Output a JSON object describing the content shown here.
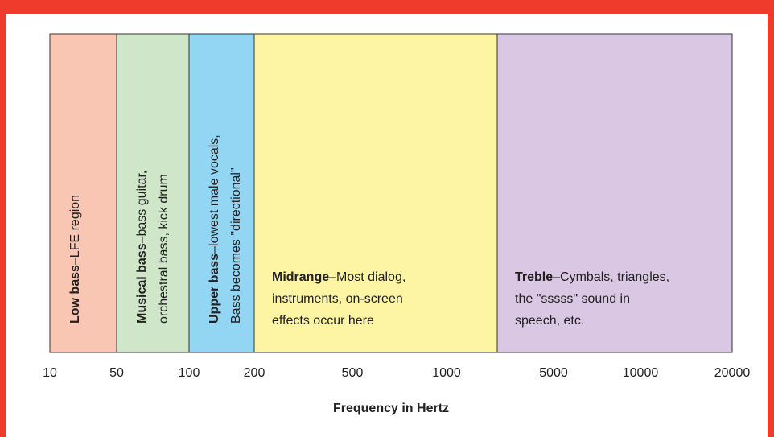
{
  "bands": [
    {
      "title": "Low bass",
      "lines": [
        "–LFE region"
      ],
      "color": "#f8c6b2"
    },
    {
      "title": "Musical bass",
      "lines": [
        "–bass guitar,",
        "orchestral bass, kick drum"
      ],
      "color": "#d0e6c8"
    },
    {
      "title": "Upper bass",
      "lines": [
        "–lowest male vocals,",
        "Bass becomes \"directional\""
      ],
      "color": "#92d6f4"
    },
    {
      "title": "Midrange",
      "lines": [
        "–Most dialog,",
        "instruments, on-screen",
        "effects occur here"
      ],
      "color": "#fdf5a3"
    },
    {
      "title": "Treble",
      "lines": [
        "–Cymbals, triangles,",
        "the \"sssss\" sound in",
        "speech, etc."
      ],
      "color": "#dac7e3"
    }
  ],
  "ticks": [
    "10",
    "50",
    "100",
    "200",
    "500",
    "1000",
    "5000",
    "10000",
    "20000"
  ],
  "axis_title": "Frequency in Hertz"
}
